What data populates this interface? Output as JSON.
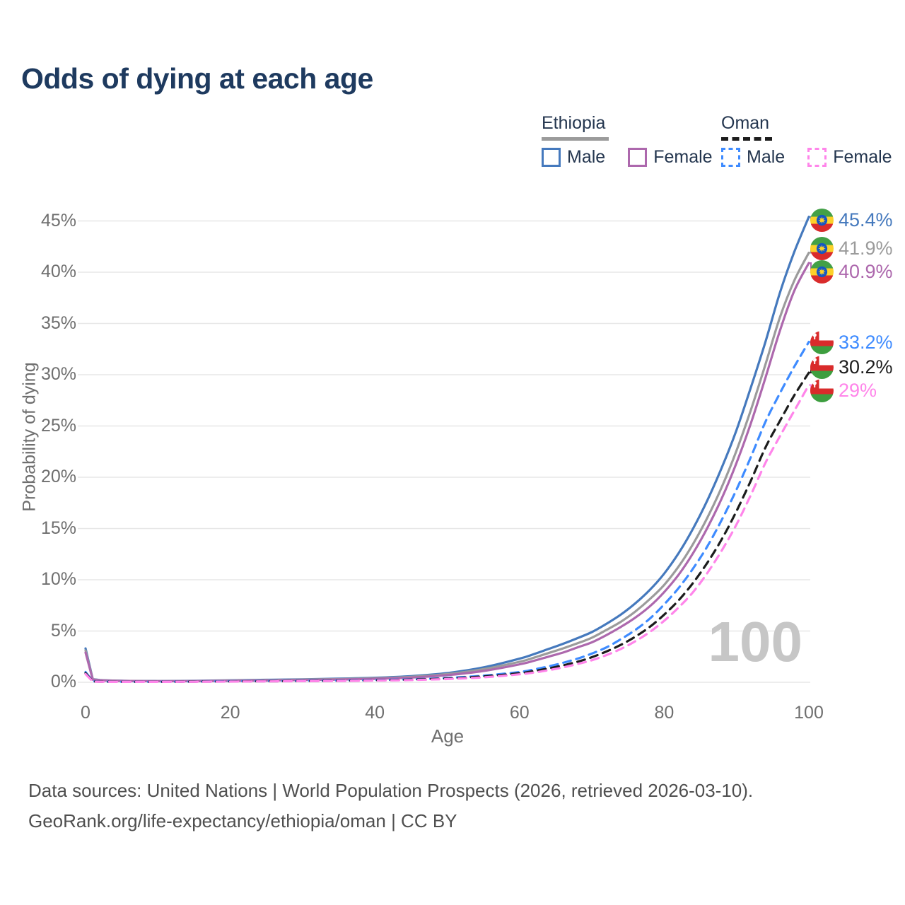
{
  "title": "Odds of dying at each age",
  "watermark": "100",
  "legend": {
    "groups": [
      {
        "name": "Ethiopia",
        "line_style": "solid",
        "line_color": "#9b9b9b",
        "items": [
          {
            "label": "Male",
            "color": "#4579bd",
            "style": "solid"
          },
          {
            "label": "Female",
            "color": "#ad68ad",
            "style": "solid"
          }
        ]
      },
      {
        "name": "Oman",
        "line_style": "dashed",
        "line_color": "#1c1c1c",
        "items": [
          {
            "label": "Male",
            "color": "#3e8bff",
            "style": "dashed"
          },
          {
            "label": "Female",
            "color": "#ff85ea",
            "style": "dashed"
          }
        ]
      }
    ]
  },
  "chart_data": {
    "type": "line",
    "title": "Odds of dying at each age",
    "xlabel": "Age",
    "ylabel": "Probability of dying",
    "xlim": [
      0,
      100
    ],
    "ylim_percent": [
      0,
      47
    ],
    "grid": "horizontal",
    "legend_position": "top-right",
    "x_ticks": [
      0,
      20,
      40,
      60,
      80,
      100
    ],
    "x_tick_labels": [
      "0",
      "20",
      "40",
      "60",
      "80",
      "100"
    ],
    "y_ticks_percent": [
      0,
      5,
      10,
      15,
      20,
      25,
      30,
      35,
      40,
      45
    ],
    "y_tick_labels": [
      "0%",
      "5%",
      "10%",
      "15%",
      "20%",
      "25%",
      "30%",
      "35%",
      "40%",
      "45%"
    ],
    "x": [
      0,
      1,
      2,
      5,
      10,
      15,
      20,
      25,
      30,
      35,
      40,
      45,
      50,
      55,
      60,
      62,
      64,
      66,
      68,
      70,
      72,
      74,
      76,
      78,
      80,
      82,
      84,
      86,
      88,
      90,
      92,
      94,
      96,
      98,
      100
    ],
    "series": [
      {
        "name": "Ethiopia Male",
        "country": "Ethiopia",
        "sex": "Male",
        "style": "solid",
        "color": "#4579bd",
        "flag": "ethiopia",
        "end_label": "45.4%",
        "values_percent": [
          3.3,
          0.3,
          0.22,
          0.15,
          0.12,
          0.14,
          0.19,
          0.24,
          0.29,
          0.35,
          0.44,
          0.6,
          0.9,
          1.45,
          2.3,
          2.75,
          3.25,
          3.75,
          4.3,
          4.9,
          5.7,
          6.6,
          7.7,
          9.0,
          10.6,
          12.6,
          15.0,
          17.8,
          21.0,
          24.6,
          28.8,
          33.2,
          38.0,
          42.0,
          45.4
        ]
      },
      {
        "name": "Ethiopia Both sexes",
        "country": "Ethiopia",
        "sex": "Both",
        "style": "solid",
        "color": "#9b9b9b",
        "flag": "ethiopia",
        "end_label": "41.9%",
        "values_percent": [
          3.1,
          0.28,
          0.2,
          0.14,
          0.11,
          0.12,
          0.17,
          0.21,
          0.26,
          0.31,
          0.39,
          0.53,
          0.8,
          1.28,
          2.0,
          2.4,
          2.85,
          3.3,
          3.8,
          4.35,
          5.1,
          5.9,
          6.9,
          8.1,
          9.5,
          11.3,
          13.5,
          16.1,
          19.1,
          22.6,
          26.6,
          31.0,
          35.6,
          39.2,
          41.9
        ]
      },
      {
        "name": "Ethiopia Female",
        "country": "Ethiopia",
        "sex": "Female",
        "style": "solid",
        "color": "#ad68ad",
        "flag": "ethiopia",
        "end_label": "40.9%",
        "values_percent": [
          2.9,
          0.26,
          0.19,
          0.13,
          0.1,
          0.11,
          0.14,
          0.17,
          0.22,
          0.27,
          0.34,
          0.46,
          0.7,
          1.1,
          1.75,
          2.1,
          2.5,
          2.9,
          3.4,
          3.9,
          4.6,
          5.4,
          6.3,
          7.4,
          8.8,
          10.5,
          12.6,
          15.1,
          18.0,
          21.4,
          25.3,
          29.7,
          34.3,
          38.2,
          40.9
        ]
      },
      {
        "name": "Oman Male",
        "country": "Oman",
        "sex": "Male",
        "style": "dashed",
        "color": "#3e8bff",
        "flag": "oman",
        "end_label": "33.2%",
        "values_percent": [
          1.0,
          0.09,
          0.07,
          0.05,
          0.05,
          0.07,
          0.1,
          0.12,
          0.14,
          0.17,
          0.22,
          0.29,
          0.42,
          0.65,
          1.0,
          1.25,
          1.55,
          1.9,
          2.3,
          2.8,
          3.4,
          4.2,
          5.1,
          6.2,
          7.6,
          9.2,
          11.1,
          13.3,
          15.9,
          18.8,
          22.0,
          25.4,
          28.2,
          30.8,
          33.2
        ]
      },
      {
        "name": "Oman Both sexes",
        "country": "Oman",
        "sex": "Both",
        "style": "dashed",
        "color": "#1c1c1c",
        "flag": "oman",
        "end_label": "30.2%",
        "values_percent": [
          0.9,
          0.08,
          0.06,
          0.05,
          0.04,
          0.06,
          0.08,
          0.1,
          0.12,
          0.15,
          0.19,
          0.26,
          0.37,
          0.57,
          0.88,
          1.1,
          1.35,
          1.65,
          2.0,
          2.45,
          3.0,
          3.65,
          4.45,
          5.4,
          6.6,
          8.0,
          9.7,
          11.7,
          14.0,
          16.7,
          19.7,
          22.9,
          25.5,
          28.0,
          30.2
        ]
      },
      {
        "name": "Oman Female",
        "country": "Oman",
        "sex": "Female",
        "style": "dashed",
        "color": "#ff85ea",
        "flag": "oman",
        "end_label": "29%",
        "values_percent": [
          0.8,
          0.07,
          0.05,
          0.04,
          0.04,
          0.05,
          0.07,
          0.09,
          0.11,
          0.13,
          0.17,
          0.22,
          0.32,
          0.48,
          0.78,
          0.95,
          1.18,
          1.45,
          1.78,
          2.15,
          2.65,
          3.25,
          4.0,
          4.9,
          6.0,
          7.3,
          8.8,
          10.7,
          12.9,
          15.4,
          18.3,
          21.4,
          24.0,
          26.5,
          29.0
        ]
      }
    ]
  },
  "footer": {
    "line1": "Data sources: United Nations | World Population Prospects (2026, retrieved 2026-03-10).",
    "line2": "GeoRank.org/life-expectancy/ethiopia/oman | CC BY"
  }
}
